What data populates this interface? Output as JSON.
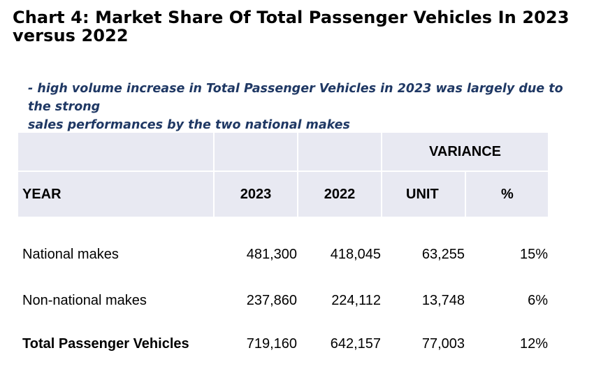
{
  "title": "Chart 4: Market Share Of Total Passenger Vehicles In 2023 versus 2022",
  "subtitle": {
    "line1": "- high volume increase in Total Passenger Vehicles in 2023 was largely due to the strong",
    "line2": "sales performances by the two national makes"
  },
  "table": {
    "variance_label": "VARIANCE",
    "headers": {
      "year": "YEAR",
      "y2023": "2023",
      "y2022": "2022",
      "unit": "UNIT",
      "pct": "%"
    },
    "rows": [
      {
        "label": "National makes",
        "v2023": "481,300",
        "v2022": "418,045",
        "unit": "63,255",
        "pct": "15%"
      },
      {
        "label": "Non-national makes",
        "v2023": "237,860",
        "v2022": "224,112",
        "unit": "13,748",
        "pct": "6%"
      },
      {
        "label": "Total Passenger Vehicles",
        "v2023": "719,160",
        "v2022": "642,157",
        "unit": "77,003",
        "pct": "12%"
      }
    ]
  },
  "colors": {
    "header_bg": "#e8e9f2",
    "subtitle": "#1f3864",
    "title": "#000000"
  }
}
